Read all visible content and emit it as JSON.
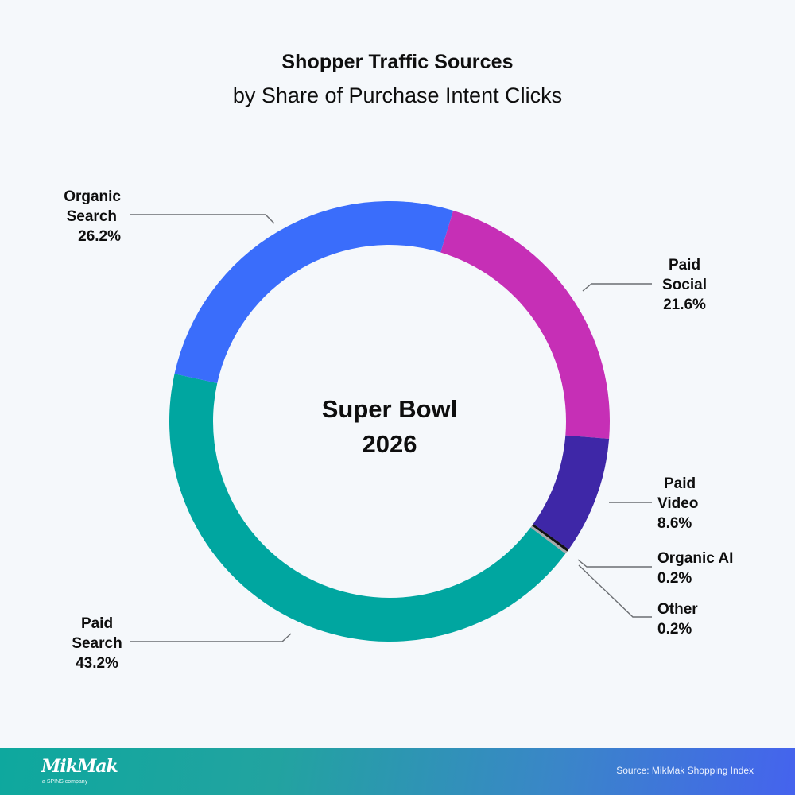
{
  "header": {
    "title": "Shopper Traffic Sources",
    "subtitle": "by Share of Purchase Intent Clicks"
  },
  "center_label": {
    "line1": "Super Bowl",
    "line2": "2026"
  },
  "labels": {
    "organic_search": {
      "line1": "Organic",
      "line2": "Search",
      "value": "26.2%"
    },
    "paid_social": {
      "line1": "Paid",
      "line2": "Social",
      "value": "21.6%"
    },
    "paid_video": {
      "line1": "Paid",
      "line2": "Video",
      "value": "8.6%"
    },
    "organic_ai": {
      "line1": "Organic AI",
      "value": "0.2%"
    },
    "other": {
      "line1": "Other",
      "value": "0.2%"
    },
    "paid_search": {
      "line1": "Paid",
      "line2": "Search",
      "value": "43.2%"
    }
  },
  "footer": {
    "logo": "MikMak",
    "logo_sub": "a SPINS company",
    "source": "Source: MikMak Shopping Index"
  },
  "colors": {
    "background": "#f5f8fb",
    "paid_social": "#c62fb6",
    "paid_video": "#3e27a7",
    "organic_ai": "#111111",
    "other": "#a7a9ab",
    "paid_search": "#00a6a0",
    "organic_search": "#3a6dfb",
    "leader_line": "#6b6e72"
  },
  "chart_data": {
    "type": "pie",
    "variant": "donut",
    "title": "Shopper Traffic Sources",
    "subtitle": "by Share of Purchase Intent Clicks",
    "center_text": "Super Bowl 2026",
    "categories": [
      "Paid Social",
      "Paid Video",
      "Organic AI",
      "Other",
      "Paid Search",
      "Organic Search"
    ],
    "values": [
      21.6,
      8.6,
      0.2,
      0.2,
      43.2,
      26.2
    ],
    "unit": "%",
    "colors": [
      "#c62fb6",
      "#3e27a7",
      "#111111",
      "#a7a9ab",
      "#00a6a0",
      "#3a6dfb"
    ],
    "start_angle_deg": 16.8,
    "direction": "clockwise",
    "legend": "none (leader-line labels)",
    "source": "MikMak Shopping Index"
  }
}
